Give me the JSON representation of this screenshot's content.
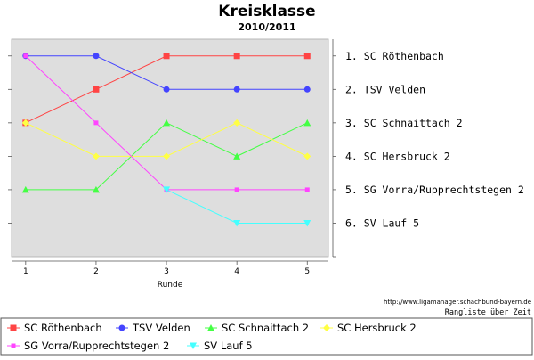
{
  "chart_data": {
    "type": "line",
    "title": "Kreisklasse",
    "subtitle": "2010/2011",
    "xlabel": "Runde",
    "ylabel": "",
    "x": [
      1,
      2,
      3,
      4,
      5
    ],
    "xlim": [
      0.8,
      5.3
    ],
    "ylim": [
      0.5,
      7.0
    ],
    "y_inverted": true,
    "grid": false,
    "legend_position": "bottom",
    "source_line": "http://www.ligamanager.schachbund-bayern.de",
    "caption": "Rangliste über Zeit",
    "right_labels": [
      "1. SC Röthenbach",
      "2. TSV Velden",
      "3. SC Schnaittach 2",
      "4. SC Hersbruck 2",
      "5. SG Vorra/Rupprechtstegen 2",
      "6. SV Lauf 5"
    ],
    "series": [
      {
        "name": "SC Röthenbach",
        "values": [
          3,
          2,
          1,
          1,
          1
        ],
        "color": "#ff4444",
        "marker": "square"
      },
      {
        "name": "TSV Velden",
        "values": [
          1,
          1,
          2,
          2,
          2
        ],
        "color": "#4444ff",
        "marker": "circle"
      },
      {
        "name": "SC Schnaittach 2",
        "values": [
          5,
          5,
          3,
          4,
          3
        ],
        "color": "#44ff44",
        "marker": "triangle-up"
      },
      {
        "name": "SC Hersbruck 2",
        "values": [
          3,
          4,
          4,
          3,
          4
        ],
        "color": "#ffff44",
        "marker": "diamond"
      },
      {
        "name": "SG Vorra/Rupprechtstegen 2",
        "values": [
          1,
          3,
          5,
          5,
          5
        ],
        "color": "#ff44ff",
        "marker": "square-small"
      },
      {
        "name": "SV Lauf 5",
        "values": [
          null,
          null,
          5,
          6,
          6
        ],
        "color": "#44ffff",
        "marker": "triangle-down"
      }
    ]
  }
}
